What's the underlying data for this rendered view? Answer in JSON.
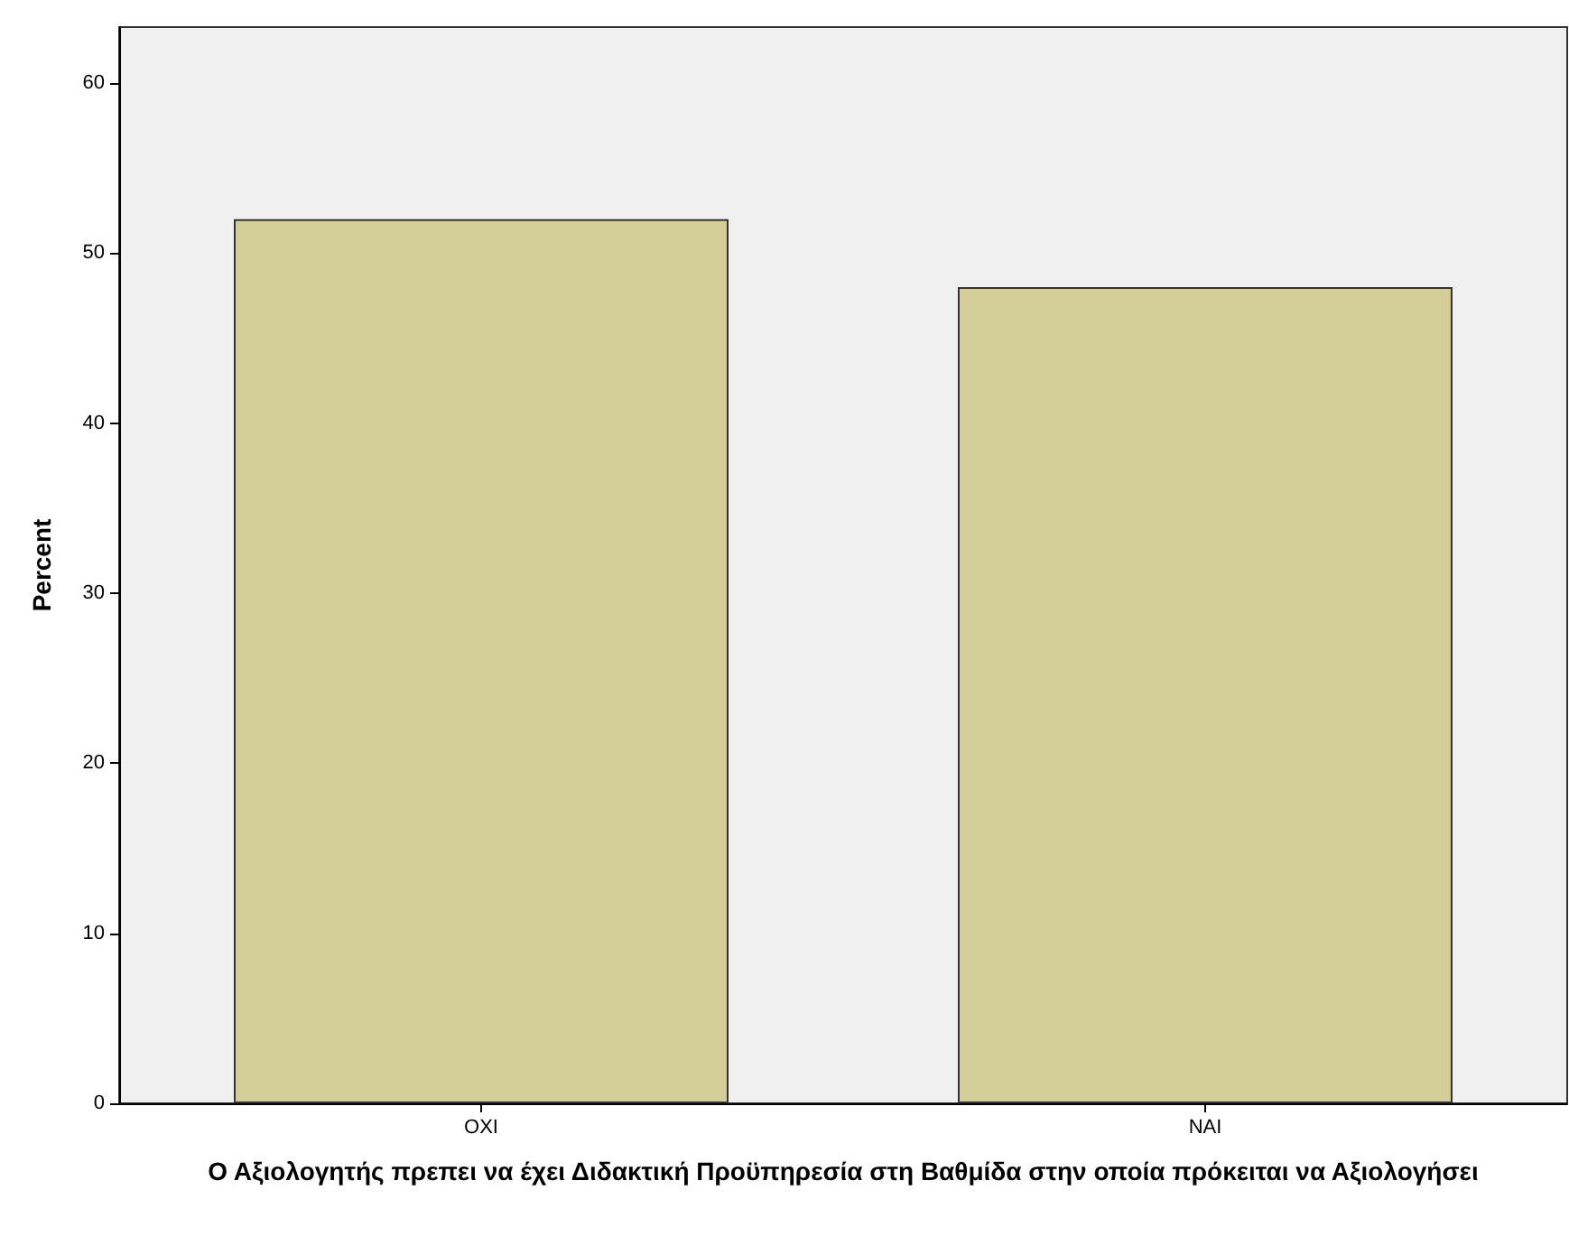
{
  "chart_data": {
    "type": "bar",
    "xlabel": "Ο Αξιολογητής πρεπει να έχει Διδακτική Προϋπηρεσία στη Βαθμίδα στην οποία πρόκειται να Αξιολογήσει",
    "ylabel": "Percent",
    "categories": [
      "ΟΧΙ",
      "ΝΑΙ"
    ],
    "values": [
      52,
      48
    ],
    "color": "#d3ce97",
    "ylim": [
      0,
      63.3
    ],
    "yticks": [
      0,
      10,
      20,
      30,
      40,
      50,
      60
    ],
    "grid": false
  }
}
